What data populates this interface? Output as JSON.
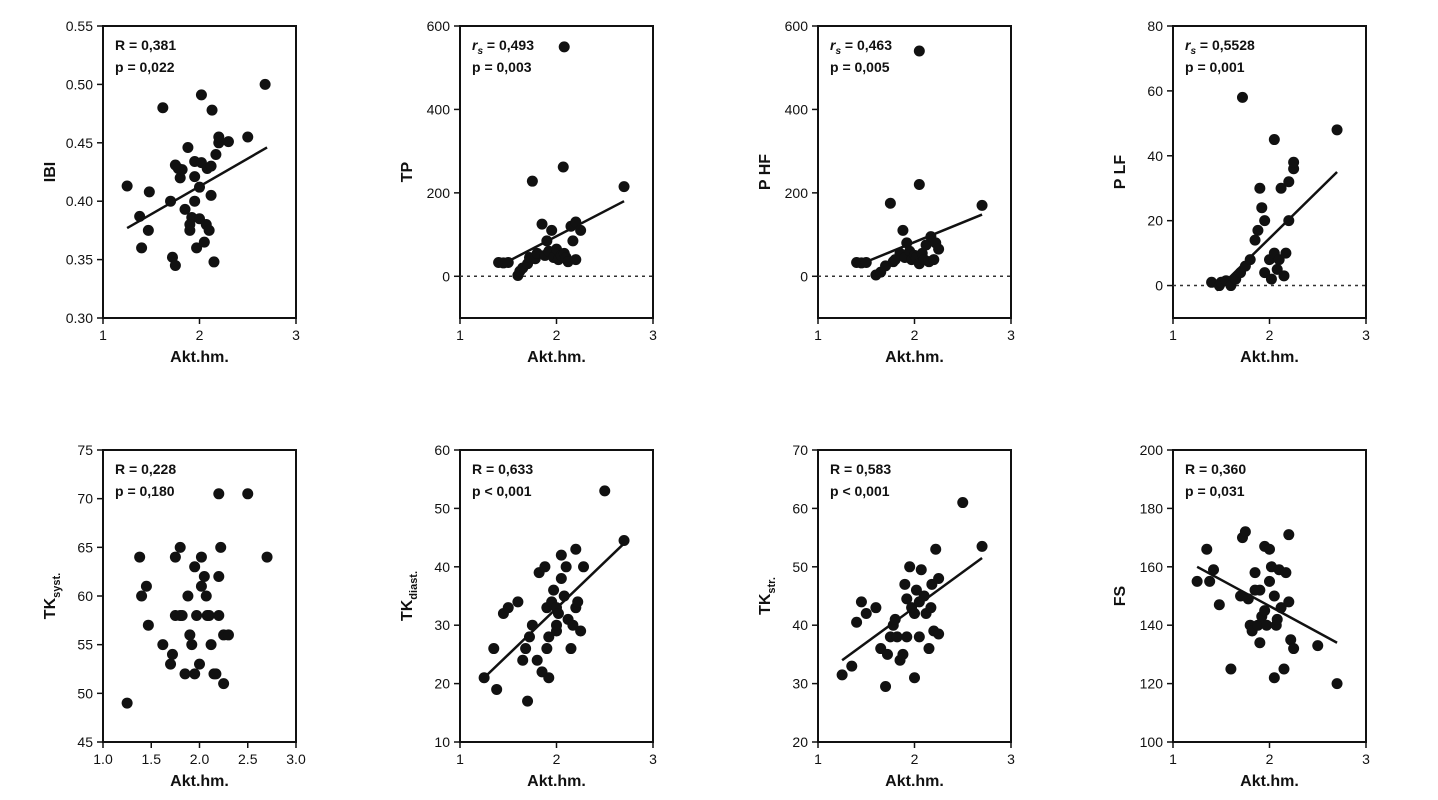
{
  "chart_data": [
    {
      "type": "scatter",
      "ylabel": "IBI",
      "ylabel_sub": "",
      "xlabel": "Akt.hm.",
      "xlim": [
        1,
        3
      ],
      "ylim": [
        0.3,
        0.55
      ],
      "xticks": [
        "1",
        "2",
        "3"
      ],
      "yticks": [
        "0.30",
        "0.35",
        "0.40",
        "0.45",
        "0.50",
        "0.55"
      ],
      "stat_label": "R",
      "stat_value": "0,381",
      "p_text": "p = 0,022",
      "regression": {
        "x1": 1.25,
        "y1": 0.377,
        "x2": 2.7,
        "y2": 0.446
      },
      "zero_line": false,
      "points": [
        [
          1.25,
          0.413
        ],
        [
          1.38,
          0.387
        ],
        [
          1.4,
          0.36
        ],
        [
          1.47,
          0.375
        ],
        [
          1.48,
          0.408
        ],
        [
          1.62,
          0.48
        ],
        [
          1.7,
          0.4
        ],
        [
          1.72,
          0.352
        ],
        [
          1.75,
          0.345
        ],
        [
          1.75,
          0.431
        ],
        [
          1.8,
          0.42
        ],
        [
          1.82,
          0.427
        ],
        [
          1.85,
          0.393
        ],
        [
          1.88,
          0.446
        ],
        [
          1.9,
          0.375
        ],
        [
          1.92,
          0.386
        ],
        [
          1.95,
          0.421
        ],
        [
          1.95,
          0.4
        ],
        [
          1.95,
          0.434
        ],
        [
          1.97,
          0.36
        ],
        [
          2.0,
          0.385
        ],
        [
          2.02,
          0.491
        ],
        [
          2.02,
          0.433
        ],
        [
          2.05,
          0.365
        ],
        [
          2.07,
          0.38
        ],
        [
          2.08,
          0.428
        ],
        [
          2.1,
          0.375
        ],
        [
          2.12,
          0.43
        ],
        [
          2.12,
          0.405
        ],
        [
          2.13,
          0.478
        ],
        [
          2.15,
          0.348
        ],
        [
          2.17,
          0.44
        ],
        [
          2.2,
          0.45
        ],
        [
          2.2,
          0.455
        ],
        [
          2.3,
          0.451
        ],
        [
          2.5,
          0.455
        ],
        [
          2.68,
          0.5
        ],
        [
          1.78,
          0.428
        ],
        [
          2.0,
          0.412
        ],
        [
          1.9,
          0.38
        ]
      ]
    },
    {
      "type": "scatter",
      "ylabel": "TP",
      "ylabel_sub": "",
      "xlabel": "Akt.hm.",
      "xlim": [
        1,
        3
      ],
      "ylim": [
        -100,
        600
      ],
      "xticks": [
        "1",
        "2",
        "3"
      ],
      "yticks": [
        "0",
        "200",
        "400",
        "600"
      ],
      "stat_label": "rs",
      "stat_value": "0,493",
      "p_text": "p = 0,003",
      "regression": {
        "x1": 1.45,
        "y1": 30,
        "x2": 2.7,
        "y2": 180
      },
      "zero_line": true,
      "points": [
        [
          1.4,
          33
        ],
        [
          1.45,
          32
        ],
        [
          1.5,
          33
        ],
        [
          1.6,
          2
        ],
        [
          1.62,
          12
        ],
        [
          1.65,
          20
        ],
        [
          1.7,
          30
        ],
        [
          1.72,
          45
        ],
        [
          1.75,
          228
        ],
        [
          1.78,
          42
        ],
        [
          1.8,
          55
        ],
        [
          1.85,
          125
        ],
        [
          1.88,
          50
        ],
        [
          1.9,
          85
        ],
        [
          1.92,
          60
        ],
        [
          1.95,
          110
        ],
        [
          1.97,
          45
        ],
        [
          2.0,
          65
        ],
        [
          2.02,
          40
        ],
        [
          2.05,
          50
        ],
        [
          2.07,
          262
        ],
        [
          2.08,
          55
        ],
        [
          2.1,
          45
        ],
        [
          2.12,
          35
        ],
        [
          2.15,
          120
        ],
        [
          2.17,
          85
        ],
        [
          2.2,
          40
        ],
        [
          2.2,
          130
        ],
        [
          2.25,
          110
        ],
        [
          2.7,
          215
        ],
        [
          2.08,
          550
        ]
      ]
    },
    {
      "type": "scatter",
      "ylabel": "P HF",
      "ylabel_sub": "",
      "xlabel": "Akt.hm.",
      "xlim": [
        1,
        3
      ],
      "ylim": [
        -100,
        600
      ],
      "xticks": [
        "1",
        "2",
        "3"
      ],
      "yticks": [
        "0",
        "200",
        "400",
        "600"
      ],
      "stat_label": "rs",
      "stat_value": "0,463",
      "p_text": "p = 0,005",
      "regression": {
        "x1": 1.45,
        "y1": 30,
        "x2": 2.7,
        "y2": 148
      },
      "zero_line": true,
      "points": [
        [
          1.4,
          33
        ],
        [
          1.45,
          32
        ],
        [
          1.5,
          33
        ],
        [
          1.6,
          3
        ],
        [
          1.65,
          10
        ],
        [
          1.7,
          25
        ],
        [
          1.75,
          175
        ],
        [
          1.78,
          35
        ],
        [
          1.8,
          40
        ],
        [
          1.85,
          55
        ],
        [
          1.88,
          110
        ],
        [
          1.9,
          45
        ],
        [
          1.92,
          80
        ],
        [
          1.95,
          60
        ],
        [
          1.97,
          40
        ],
        [
          2.0,
          50
        ],
        [
          2.02,
          45
        ],
        [
          2.05,
          30
        ],
        [
          2.05,
          220
        ],
        [
          2.08,
          55
        ],
        [
          2.1,
          40
        ],
        [
          2.12,
          75
        ],
        [
          2.15,
          35
        ],
        [
          2.17,
          95
        ],
        [
          2.2,
          40
        ],
        [
          2.22,
          80
        ],
        [
          2.25,
          65
        ],
        [
          2.7,
          170
        ],
        [
          2.05,
          540
        ]
      ]
    },
    {
      "type": "scatter",
      "ylabel": "P LF",
      "ylabel_sub": "",
      "xlabel": "Akt.hm.",
      "xlim": [
        1,
        3
      ],
      "ylim": [
        -10,
        80
      ],
      "xticks": [
        "1",
        "2",
        "3"
      ],
      "yticks": [
        "0",
        "20",
        "40",
        "60",
        "80"
      ],
      "stat_label": "rs",
      "stat_value": "0,5528",
      "p_text": "p = 0,001",
      "regression": {
        "x1": 1.45,
        "y1": -1.5,
        "x2": 2.7,
        "y2": 35
      },
      "zero_line": true,
      "points": [
        [
          1.4,
          1
        ],
        [
          1.48,
          0
        ],
        [
          1.5,
          1
        ],
        [
          1.55,
          1.5
        ],
        [
          1.6,
          0
        ],
        [
          1.65,
          2
        ],
        [
          1.7,
          4
        ],
        [
          1.72,
          58
        ],
        [
          1.75,
          6
        ],
        [
          1.8,
          8
        ],
        [
          1.85,
          14
        ],
        [
          1.88,
          17
        ],
        [
          1.9,
          30
        ],
        [
          1.92,
          24
        ],
        [
          1.95,
          4
        ],
        [
          1.95,
          20
        ],
        [
          2.0,
          8
        ],
        [
          2.02,
          2
        ],
        [
          2.05,
          45
        ],
        [
          2.05,
          10
        ],
        [
          2.08,
          5
        ],
        [
          2.1,
          8
        ],
        [
          2.12,
          30
        ],
        [
          2.15,
          3
        ],
        [
          2.17,
          10
        ],
        [
          2.2,
          32
        ],
        [
          2.2,
          20
        ],
        [
          2.25,
          36
        ],
        [
          2.25,
          38
        ],
        [
          2.7,
          48
        ]
      ]
    },
    {
      "type": "scatter",
      "ylabel": "TK",
      "ylabel_sub": "syst.",
      "xlabel": "Akt.hm.",
      "xlim": [
        1.0,
        3.0
      ],
      "ylim": [
        45,
        75
      ],
      "xticks": [
        "1.0",
        "1.5",
        "2.0",
        "2.5",
        "3.0"
      ],
      "yticks": [
        "45",
        "50",
        "55",
        "60",
        "65",
        "70",
        "75"
      ],
      "stat_label": "R",
      "stat_value": "0,228",
      "p_text": "p = 0,180",
      "regression": null,
      "zero_line": false,
      "points": [
        [
          1.25,
          49
        ],
        [
          1.38,
          64
        ],
        [
          1.4,
          60
        ],
        [
          1.45,
          61
        ],
        [
          1.47,
          57
        ],
        [
          1.62,
          55
        ],
        [
          1.7,
          53
        ],
        [
          1.72,
          54
        ],
        [
          1.75,
          58
        ],
        [
          1.75,
          64
        ],
        [
          1.8,
          65
        ],
        [
          1.82,
          58
        ],
        [
          1.85,
          52
        ],
        [
          1.88,
          60
        ],
        [
          1.9,
          56
        ],
        [
          1.92,
          55
        ],
        [
          1.95,
          52
        ],
        [
          1.95,
          63
        ],
        [
          1.97,
          58
        ],
        [
          2.0,
          53
        ],
        [
          2.02,
          64
        ],
        [
          2.02,
          61
        ],
        [
          2.05,
          62
        ],
        [
          2.07,
          60
        ],
        [
          2.08,
          58
        ],
        [
          2.1,
          58
        ],
        [
          2.12,
          55
        ],
        [
          2.15,
          52
        ],
        [
          2.17,
          52
        ],
        [
          2.2,
          58
        ],
        [
          2.2,
          62
        ],
        [
          2.2,
          70.5
        ],
        [
          2.22,
          65
        ],
        [
          2.25,
          56
        ],
        [
          2.25,
          51
        ],
        [
          2.3,
          56
        ],
        [
          2.5,
          70.5
        ],
        [
          2.7,
          64
        ],
        [
          1.8,
          58
        ]
      ]
    },
    {
      "type": "scatter",
      "ylabel": "TK",
      "ylabel_sub": "diast.",
      "xlabel": "Akt.hm.",
      "xlim": [
        1,
        3
      ],
      "ylim": [
        10,
        60
      ],
      "xticks": [
        "1",
        "2",
        "3"
      ],
      "yticks": [
        "10",
        "20",
        "30",
        "40",
        "50",
        "60"
      ],
      "stat_label": "R",
      "stat_value": "0,633",
      "p_text": "p < 0,001",
      "regression": {
        "x1": 1.25,
        "y1": 21,
        "x2": 2.7,
        "y2": 44
      },
      "zero_line": false,
      "points": [
        [
          1.25,
          21
        ],
        [
          1.35,
          26
        ],
        [
          1.38,
          19
        ],
        [
          1.45,
          32
        ],
        [
          1.5,
          33
        ],
        [
          1.6,
          34
        ],
        [
          1.65,
          24
        ],
        [
          1.68,
          26
        ],
        [
          1.7,
          17
        ],
        [
          1.72,
          28
        ],
        [
          1.75,
          30
        ],
        [
          1.8,
          24
        ],
        [
          1.82,
          39
        ],
        [
          1.85,
          22
        ],
        [
          1.88,
          40
        ],
        [
          1.9,
          33
        ],
        [
          1.92,
          21
        ],
        [
          1.92,
          28
        ],
        [
          1.95,
          34
        ],
        [
          1.97,
          36
        ],
        [
          2.0,
          33
        ],
        [
          2.0,
          29
        ],
        [
          2.02,
          32
        ],
        [
          2.05,
          42
        ],
        [
          2.05,
          38
        ],
        [
          2.08,
          35
        ],
        [
          2.1,
          40
        ],
        [
          2.12,
          31
        ],
        [
          2.15,
          26
        ],
        [
          2.17,
          30
        ],
        [
          2.2,
          33
        ],
        [
          2.2,
          43
        ],
        [
          2.22,
          34
        ],
        [
          2.25,
          29
        ],
        [
          2.28,
          40
        ],
        [
          2.5,
          53
        ],
        [
          2.7,
          44.5
        ],
        [
          1.9,
          26
        ],
        [
          2.0,
          30
        ]
      ]
    },
    {
      "type": "scatter",
      "ylabel": "TK",
      "ylabel_sub": "str.",
      "xlabel": "Akt.hm.",
      "xlim": [
        1,
        3
      ],
      "ylim": [
        20,
        70
      ],
      "xticks": [
        "1",
        "2",
        "3"
      ],
      "yticks": [
        "20",
        "30",
        "40",
        "50",
        "60",
        "70"
      ],
      "stat_label": "R",
      "stat_value": "0,583",
      "p_text": "p < 0,001",
      "regression": {
        "x1": 1.25,
        "y1": 34,
        "x2": 2.7,
        "y2": 51.5
      },
      "zero_line": false,
      "points": [
        [
          1.25,
          31.5
        ],
        [
          1.35,
          33
        ],
        [
          1.4,
          40.5
        ],
        [
          1.45,
          44
        ],
        [
          1.5,
          42
        ],
        [
          1.6,
          43
        ],
        [
          1.65,
          36
        ],
        [
          1.7,
          29.5
        ],
        [
          1.72,
          35
        ],
        [
          1.75,
          38
        ],
        [
          1.78,
          40
        ],
        [
          1.8,
          41
        ],
        [
          1.82,
          38
        ],
        [
          1.85,
          34
        ],
        [
          1.88,
          35
        ],
        [
          1.9,
          47
        ],
        [
          1.92,
          44.5
        ],
        [
          1.95,
          50
        ],
        [
          1.97,
          43
        ],
        [
          2.0,
          42
        ],
        [
          2.0,
          31
        ],
        [
          2.02,
          46
        ],
        [
          2.05,
          38
        ],
        [
          2.05,
          44
        ],
        [
          2.07,
          49.5
        ],
        [
          2.1,
          45
        ],
        [
          2.12,
          42
        ],
        [
          2.15,
          36
        ],
        [
          2.17,
          43
        ],
        [
          2.18,
          47
        ],
        [
          2.2,
          39
        ],
        [
          2.22,
          53
        ],
        [
          2.25,
          48
        ],
        [
          2.25,
          38.5
        ],
        [
          2.5,
          61
        ],
        [
          2.7,
          53.5
        ],
        [
          1.92,
          38
        ]
      ]
    },
    {
      "type": "scatter",
      "ylabel": "FS",
      "ylabel_sub": "",
      "xlabel": "Akt.hm.",
      "xlim": [
        1,
        3
      ],
      "ylim": [
        100,
        200
      ],
      "xticks": [
        "1",
        "2",
        "3"
      ],
      "yticks": [
        "100",
        "120",
        "140",
        "160",
        "180",
        "200"
      ],
      "stat_label": "R",
      "stat_value": "0,360",
      "p_text": "p = 0,031",
      "regression": {
        "x1": 1.25,
        "y1": 160,
        "x2": 2.7,
        "y2": 134
      },
      "zero_line": false,
      "points": [
        [
          1.25,
          155
        ],
        [
          1.35,
          166
        ],
        [
          1.38,
          155
        ],
        [
          1.42,
          159
        ],
        [
          1.48,
          147
        ],
        [
          1.6,
          125
        ],
        [
          1.7,
          150
        ],
        [
          1.72,
          170
        ],
        [
          1.75,
          172
        ],
        [
          1.78,
          149
        ],
        [
          1.8,
          140
        ],
        [
          1.82,
          138
        ],
        [
          1.85,
          158
        ],
        [
          1.88,
          140
        ],
        [
          1.9,
          152
        ],
        [
          1.9,
          134
        ],
        [
          1.92,
          143
        ],
        [
          1.95,
          167
        ],
        [
          1.95,
          145
        ],
        [
          1.97,
          140
        ],
        [
          2.0,
          166
        ],
        [
          2.0,
          155
        ],
        [
          2.02,
          160
        ],
        [
          2.05,
          122
        ],
        [
          2.07,
          140
        ],
        [
          2.08,
          142
        ],
        [
          2.1,
          159
        ],
        [
          2.12,
          146
        ],
        [
          2.15,
          125
        ],
        [
          2.17,
          158
        ],
        [
          2.2,
          148
        ],
        [
          2.2,
          171
        ],
        [
          2.22,
          135
        ],
        [
          2.25,
          132
        ],
        [
          2.5,
          133
        ],
        [
          2.7,
          120
        ],
        [
          1.85,
          152
        ],
        [
          2.05,
          150
        ]
      ]
    }
  ]
}
